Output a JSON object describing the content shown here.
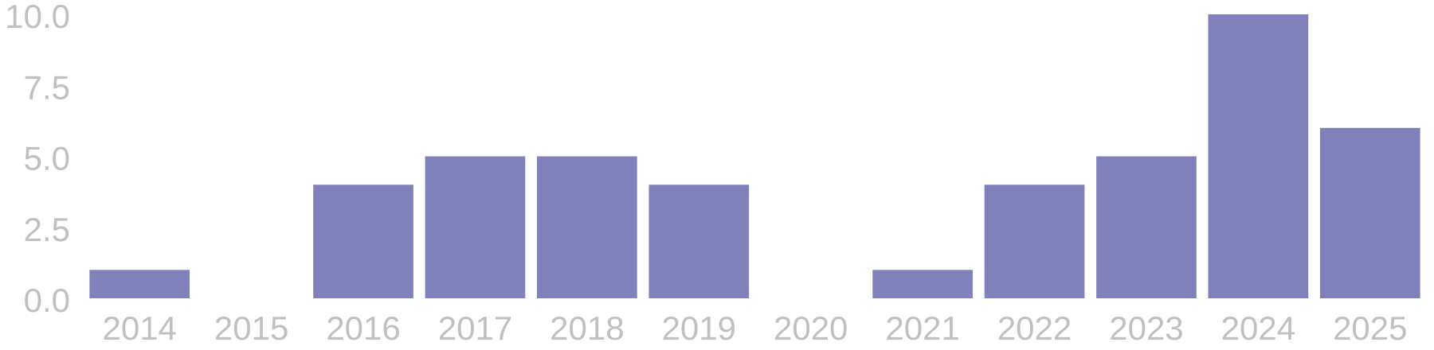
{
  "chart_data": {
    "type": "bar",
    "title": "",
    "xlabel": "",
    "ylabel": "",
    "categories": [
      "2014",
      "2015",
      "2016",
      "2017",
      "2018",
      "2019",
      "2020",
      "2021",
      "2022",
      "2023",
      "2024",
      "2025"
    ],
    "values": [
      1,
      0,
      4,
      5,
      5,
      4,
      0,
      1,
      4,
      5,
      10,
      6
    ],
    "ylim": [
      0,
      10
    ],
    "yticks": [
      "0.0",
      "2.5",
      "5.0",
      "7.5",
      "10.0"
    ],
    "grid": false,
    "legend": "none",
    "colors": {
      "bar": "#8080bb",
      "tick_label": "#c0c0c0",
      "background": "#ffffff"
    }
  }
}
